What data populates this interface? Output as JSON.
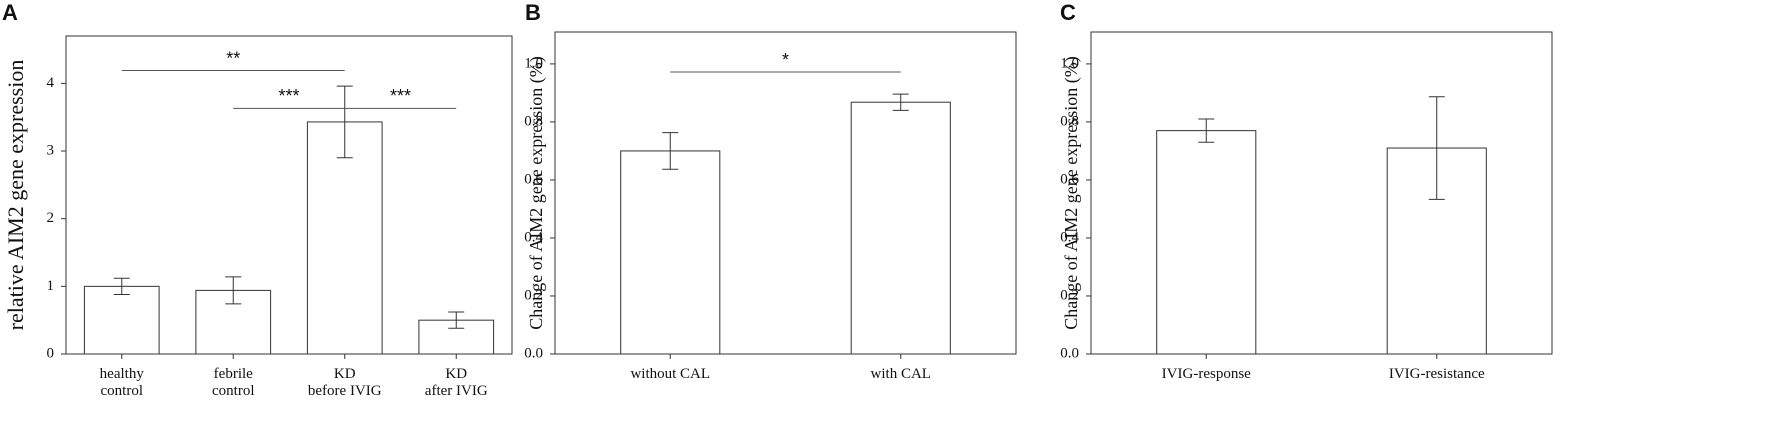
{
  "chart_data": [
    {
      "type": "bar",
      "panel": "A",
      "ylabel": "relative AIM2 gene expression",
      "categories": [
        "healthy\ncontrol",
        "febrile\ncontrol",
        "KD\nbefore IVIG",
        "KD\nafter IVIG"
      ],
      "values": [
        1.0,
        0.94,
        3.43,
        0.5
      ],
      "errors": [
        0.12,
        0.2,
        0.53,
        0.12
      ],
      "ylim": [
        0,
        4.7
      ],
      "yticks": [
        0,
        1,
        2,
        3,
        4
      ],
      "annotations": [
        {
          "text": "**",
          "y": 4.19,
          "from": "healthy\ncontrol",
          "to": "KD\nbefore IVIG"
        },
        {
          "text": "***",
          "y": 3.63,
          "from": "febrile\ncontrol",
          "to": "KD\nbefore IVIG"
        },
        {
          "text": "***",
          "y": 3.63,
          "from": "KD\nbefore IVIG",
          "to": "KD\nafter IVIG"
        }
      ]
    },
    {
      "type": "bar",
      "panel": "B",
      "ylabel": "Change of AIM2 gene expression (%)",
      "categories": [
        "without CAL",
        "with CAL"
      ],
      "values": [
        0.7,
        0.868
      ],
      "errors": [
        0.063,
        0.028
      ],
      "ylim": [
        0,
        1.11
      ],
      "yticks": [
        {
          "value": 0,
          "label": "0.0"
        },
        {
          "value": 0.2,
          "label": "0.2"
        },
        {
          "value": 0.4,
          "label": "0.4"
        },
        {
          "value": 0.6,
          "label": "0.6"
        },
        {
          "value": 0.8,
          "label": "0.8"
        },
        {
          "value": 1,
          "label": "1.0"
        }
      ],
      "annotations": [
        {
          "text": "*",
          "y": 0.972,
          "from": "without CAL",
          "to": "with CAL"
        }
      ]
    },
    {
      "type": "bar",
      "panel": "C",
      "ylabel": "Change of AIM2 gene expression (%)",
      "categories": [
        "IVIG-response",
        "IVIG-resistance"
      ],
      "values": [
        0.77,
        0.71
      ],
      "errors": [
        0.04,
        0.177
      ],
      "ylim": [
        0,
        1.11
      ],
      "yticks": [
        {
          "value": 0,
          "label": "0.0"
        },
        {
          "value": 0.2,
          "label": "0.2"
        },
        {
          "value": 0.4,
          "label": "0.4"
        },
        {
          "value": 0.6,
          "label": "0.6"
        },
        {
          "value": 0.8,
          "label": "0.8"
        },
        {
          "value": 1,
          "label": "1.0"
        }
      ]
    }
  ]
}
